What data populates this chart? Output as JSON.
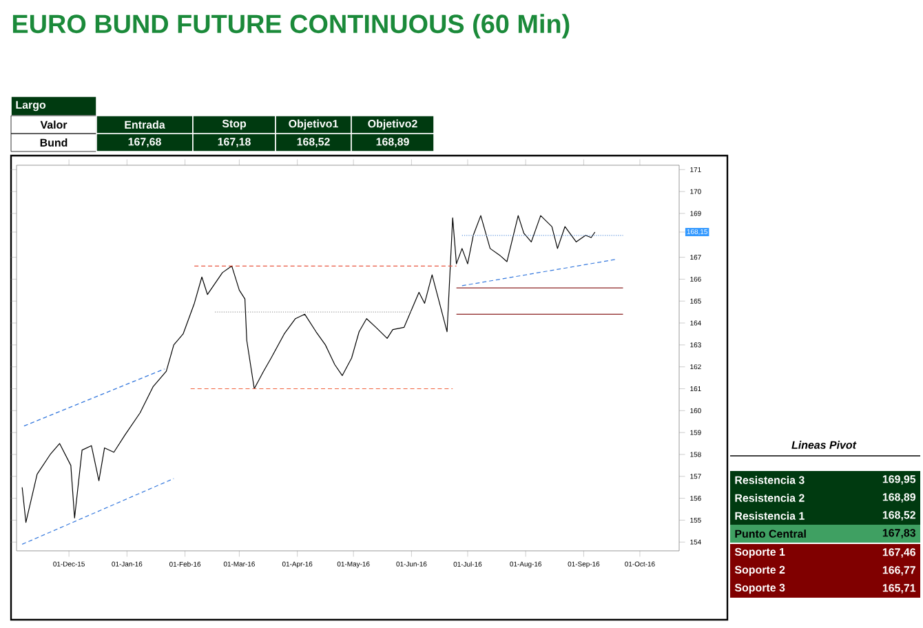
{
  "chart_data": {
    "type": "line",
    "title": "EURO BUND FUTURE CONTINUOUS (60 Min)",
    "xlim": [
      "2015-11-03",
      "2016-10-22"
    ],
    "ylim": [
      153.6,
      171.2
    ],
    "xticks": [
      {
        "value": "2015-12-01",
        "label": "01-Dec-15"
      },
      {
        "value": "2016-01-01",
        "label": "01-Jan-16"
      },
      {
        "value": "2016-02-01",
        "label": "01-Feb-16"
      },
      {
        "value": "2016-03-01",
        "label": "01-Mar-16"
      },
      {
        "value": "2016-04-01",
        "label": "01-Apr-16"
      },
      {
        "value": "2016-05-01",
        "label": "01-May-16"
      },
      {
        "value": "2016-06-01",
        "label": "01-Jun-16"
      },
      {
        "value": "2016-07-01",
        "label": "01-Jul-16"
      },
      {
        "value": "2016-08-01",
        "label": "01-Aug-16"
      },
      {
        "value": "2016-09-01",
        "label": "01-Sep-16"
      },
      {
        "value": "2016-10-01",
        "label": "01-Oct-16"
      }
    ],
    "yticks": [
      154,
      155,
      156,
      157,
      158,
      159,
      160,
      161,
      162,
      163,
      164,
      165,
      166,
      167,
      {
        "value": 168.15,
        "label": "168,15"
      },
      169,
      170,
      171
    ],
    "series": [
      {
        "color": "#000000",
        "line_style": "solid",
        "x": [
          "2015-11-06",
          "2015-11-08",
          "2015-11-14",
          "2015-11-21",
          "2015-11-26",
          "2015-12-02",
          "2015-12-04",
          "2015-12-08",
          "2015-12-13",
          "2015-12-17",
          "2015-12-20",
          "2015-12-25",
          "2015-12-31",
          "2016-01-08",
          "2016-01-15",
          "2016-01-22",
          "2016-01-26",
          "2016-01-31",
          "2016-02-06",
          "2016-02-10",
          "2016-02-13",
          "2016-02-21",
          "2016-02-26",
          "2016-03-01",
          "2016-03-04",
          "2016-03-05",
          "2016-03-09",
          "2016-03-14",
          "2016-03-18",
          "2016-03-25",
          "2016-03-31",
          "2016-04-05",
          "2016-04-11",
          "2016-04-16",
          "2016-04-21",
          "2016-04-25",
          "2016-04-30",
          "2016-05-04",
          "2016-05-08",
          "2016-05-13",
          "2016-05-19",
          "2016-05-22",
          "2016-05-28",
          "2016-06-01",
          "2016-06-05",
          "2016-06-08",
          "2016-06-12",
          "2016-06-16",
          "2016-06-20",
          "2016-06-23",
          "2016-06-25",
          "2016-06-28",
          "2016-07-01",
          "2016-07-04",
          "2016-07-08",
          "2016-07-13",
          "2016-07-18",
          "2016-07-22",
          "2016-07-28",
          "2016-07-31",
          "2016-08-04",
          "2016-08-09",
          "2016-08-15",
          "2016-08-18",
          "2016-08-22",
          "2016-08-28",
          "2016-09-02",
          "2016-09-05",
          "2016-09-07"
        ],
        "values": [
          156.5,
          154.9,
          157.1,
          158.0,
          158.5,
          157.5,
          155.1,
          158.2,
          158.4,
          156.8,
          158.3,
          158.1,
          158.9,
          159.9,
          161.1,
          161.8,
          163.0,
          163.5,
          164.9,
          166.1,
          165.3,
          166.3,
          166.6,
          165.5,
          165.1,
          163.2,
          161.0,
          161.8,
          162.4,
          163.5,
          164.2,
          164.4,
          163.6,
          163.0,
          162.1,
          161.6,
          162.4,
          163.6,
          164.2,
          163.8,
          163.3,
          163.7,
          163.8,
          164.6,
          165.4,
          164.9,
          166.2,
          164.9,
          163.6,
          168.8,
          166.7,
          167.4,
          166.7,
          168.0,
          168.9,
          167.4,
          167.1,
          166.8,
          168.9,
          168.1,
          167.7,
          168.9,
          168.4,
          167.4,
          168.4,
          167.7,
          168.0,
          167.9,
          168.15
        ]
      },
      {
        "color": "#e8553f",
        "line_style": "dashed",
        "x": [
          "2016-02-06",
          "2016-06-25"
        ],
        "values": [
          166.6,
          166.6
        ]
      },
      {
        "color": "#999999",
        "line_style": "dotted",
        "x": [
          "2016-02-17",
          "2016-06-01"
        ],
        "values": [
          164.5,
          164.5
        ]
      },
      {
        "color": "#f0603a",
        "line_style": "dashed",
        "x": [
          "2016-02-04",
          "2016-06-23"
        ],
        "values": [
          161.0,
          161.0
        ]
      },
      {
        "color": "#6699dd",
        "line_style": "dotted",
        "x": [
          "2016-06-28",
          "2016-09-22"
        ],
        "values": [
          168.0,
          168.0
        ]
      },
      {
        "color": "#3377dd",
        "line_style": "dashed",
        "x": [
          "2016-06-28",
          "2016-09-18"
        ],
        "values": [
          165.7,
          166.9
        ]
      },
      {
        "color": "#3377dd",
        "line_style": "dashed",
        "x": [
          "2015-11-07",
          "2016-01-21"
        ],
        "values": [
          159.3,
          161.9
        ]
      },
      {
        "color": "#3377dd",
        "line_style": "dashed",
        "x": [
          "2015-11-06",
          "2016-01-26"
        ],
        "values": [
          153.9,
          156.9
        ]
      },
      {
        "color": "#8b2020",
        "line_style": "solid",
        "x": [
          "2016-06-25",
          "2016-09-22"
        ],
        "values": [
          165.6,
          165.6
        ]
      },
      {
        "color": "#8b2021",
        "line_style": "solid",
        "x": [
          "2016-06-25",
          "2016-09-22"
        ],
        "values": [
          164.4,
          164.4
        ]
      }
    ],
    "annotations": [
      "Largo",
      "Valor",
      "Entrada",
      "Stop",
      "Objetivo1",
      "Objetivo2",
      "Bund",
      "167,68",
      "167,18",
      "168,52",
      "168,89",
      "Lineas Pivot",
      "Resistencia 3",
      "169,95",
      "Resistencia 2",
      "168,89",
      "Resistencia 1",
      "168,52",
      "Punto Central",
      "167,83",
      "Soporte 1",
      "167,46",
      "Soporte 2",
      "166,77",
      "Soporte 3",
      "165,71"
    ]
  }
}
